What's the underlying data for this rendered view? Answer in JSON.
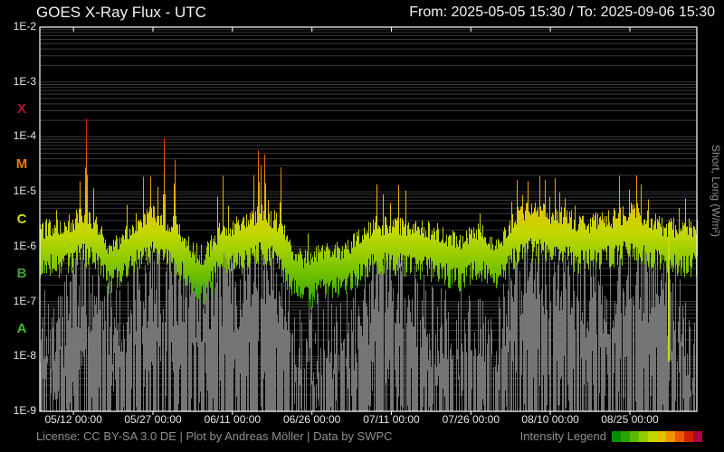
{
  "header": {
    "title": "GOES X-Ray Flux - UTC",
    "range_label": "From: 2025-05-05 15:30  /  To: 2025-09-06 15:30"
  },
  "footer": {
    "license": "License: CC BY-SA 3.0 DE | Plot by Andreas Möller | Data by SWPC",
    "legend_label": "Intensity Legend"
  },
  "chart_data": {
    "type": "line",
    "title": "GOES X-Ray Flux - UTC",
    "time_range": {
      "from": "2025-05-05 15:30",
      "to": "2025-09-06 15:30",
      "days_span": 124.0
    },
    "right_axis_label": "Short, Long (W/m²)",
    "y_axis": {
      "scale": "log",
      "log_range": [
        -2,
        -9
      ],
      "tick_labels": [
        "1E-2",
        "1E-3",
        "1E-4",
        "1E-5",
        "1E-6",
        "1E-7",
        "1E-8",
        "1E-9"
      ],
      "tick_logs": [
        -2,
        -3,
        -4,
        -5,
        -6,
        -7,
        -8,
        -9
      ],
      "unit": "W/m²"
    },
    "flare_classes": [
      {
        "label": "X",
        "log_center": -3.5,
        "color": "#b5122f"
      },
      {
        "label": "M",
        "log_center": -4.5,
        "color": "#ed7a00"
      },
      {
        "label": "C",
        "log_center": -5.5,
        "color": "#d5de12"
      },
      {
        "label": "B",
        "log_center": -6.5,
        "color": "#3fa32a"
      },
      {
        "label": "A",
        "log_center": -7.5,
        "color": "#3fbf2a"
      }
    ],
    "x_ticks": [
      {
        "day": 6.354,
        "label": "05/12 00:00"
      },
      {
        "day": 21.354,
        "label": "05/27 00:00"
      },
      {
        "day": 36.354,
        "label": "06/11 00:00"
      },
      {
        "day": 51.354,
        "label": "06/26 00:00"
      },
      {
        "day": 66.354,
        "label": "07/11 00:00"
      },
      {
        "day": 81.354,
        "label": "07/26 00:00"
      },
      {
        "day": 96.354,
        "label": "08/10 00:00"
      },
      {
        "day": 111.354,
        "label": "08/25 00:00"
      }
    ],
    "intensity_scale": {
      "log_min": -7.6,
      "log_max": -3.4,
      "colors": [
        "#009000",
        "#2aa400",
        "#5cb800",
        "#92cc00",
        "#c4d800",
        "#e4c000",
        "#f09400",
        "#ec5800",
        "#d42000",
        "#b00040"
      ]
    },
    "grid_color": "#3a3a3a",
    "frame_color": "#ffffff",
    "series": {
      "long": {
        "name": "Long",
        "baseline_log": [
          [
            0,
            -6.0
          ],
          [
            2,
            -5.95
          ],
          [
            4,
            -6.0
          ],
          [
            6,
            -5.85
          ],
          [
            8,
            -5.72
          ],
          [
            10,
            -5.85
          ],
          [
            12,
            -6.1
          ],
          [
            13,
            -6.3
          ],
          [
            15,
            -6.15
          ],
          [
            17,
            -5.95
          ],
          [
            19,
            -5.8
          ],
          [
            21,
            -5.72
          ],
          [
            23,
            -5.78
          ],
          [
            25,
            -5.9
          ],
          [
            27,
            -6.1
          ],
          [
            29,
            -6.4
          ],
          [
            31,
            -6.45
          ],
          [
            33,
            -6.15
          ],
          [
            34,
            -5.95
          ],
          [
            36,
            -5.95
          ],
          [
            38,
            -5.88
          ],
          [
            40,
            -5.78
          ],
          [
            41,
            -5.7
          ],
          [
            43,
            -5.75
          ],
          [
            45,
            -5.85
          ],
          [
            47,
            -6.25
          ],
          [
            49,
            -6.5
          ],
          [
            51,
            -6.55
          ],
          [
            53,
            -6.35
          ],
          [
            55,
            -6.3
          ],
          [
            57,
            -6.45
          ],
          [
            59,
            -6.2
          ],
          [
            61,
            -6.05
          ],
          [
            63,
            -5.9
          ],
          [
            65,
            -5.92
          ],
          [
            67,
            -5.9
          ],
          [
            69,
            -5.95
          ],
          [
            71,
            -5.95
          ],
          [
            73,
            -6.0
          ],
          [
            75,
            -6.05
          ],
          [
            77,
            -6.12
          ],
          [
            79,
            -6.2
          ],
          [
            81,
            -6.1
          ],
          [
            83,
            -6.05
          ],
          [
            85,
            -6.15
          ],
          [
            86,
            -6.25
          ],
          [
            88,
            -6.0
          ],
          [
            90,
            -5.72
          ],
          [
            92,
            -5.65
          ],
          [
            94,
            -5.68
          ],
          [
            96,
            -5.7
          ],
          [
            98,
            -5.72
          ],
          [
            100,
            -5.8
          ],
          [
            102,
            -5.88
          ],
          [
            104,
            -5.85
          ],
          [
            106,
            -5.82
          ],
          [
            108,
            -5.78
          ],
          [
            110,
            -5.72
          ],
          [
            112,
            -5.65
          ],
          [
            114,
            -5.72
          ],
          [
            116,
            -5.85
          ],
          [
            118,
            -5.95
          ],
          [
            120,
            -5.95
          ],
          [
            122,
            -5.95
          ],
          [
            124.6,
            -5.9
          ]
        ],
        "flares": [
          [
            3.1,
            -5.18
          ],
          [
            7.5,
            -4.72
          ],
          [
            8.7,
            -3.6
          ],
          [
            10.1,
            -4.8
          ],
          [
            16.4,
            -5.22
          ],
          [
            19.5,
            -4.55
          ],
          [
            20.8,
            -4.5
          ],
          [
            22.2,
            -4.89
          ],
          [
            23.4,
            -4.02
          ],
          [
            25.4,
            -4.12
          ],
          [
            33.5,
            -4.95
          ],
          [
            34.5,
            -4.7
          ],
          [
            35.5,
            -5.1
          ],
          [
            40.3,
            -4.65
          ],
          [
            41.2,
            -4.02
          ],
          [
            41.7,
            -4.36
          ],
          [
            42.4,
            -4.07
          ],
          [
            43.0,
            -4.9
          ],
          [
            45.4,
            -4.36
          ],
          [
            50.6,
            -5.5
          ],
          [
            63.5,
            -4.64
          ],
          [
            64.7,
            -4.85
          ],
          [
            66.1,
            -5.2
          ],
          [
            67.6,
            -4.66
          ],
          [
            69.0,
            -4.96
          ],
          [
            83.0,
            -5.35
          ],
          [
            89.0,
            -5.1
          ],
          [
            90.0,
            -4.72
          ],
          [
            91.0,
            -4.85
          ],
          [
            92.1,
            -4.57
          ],
          [
            93.2,
            -4.95
          ],
          [
            94.3,
            -4.6
          ],
          [
            95.3,
            -4.75
          ],
          [
            96.2,
            -4.85
          ],
          [
            97.2,
            -4.66
          ],
          [
            98.0,
            -4.78
          ],
          [
            99.1,
            -4.9
          ],
          [
            100.9,
            -5.0
          ],
          [
            102.6,
            -5.3
          ],
          [
            104.4,
            -5.15
          ],
          [
            105.7,
            -5.3
          ],
          [
            109.3,
            -4.64
          ],
          [
            111.2,
            -4.9
          ],
          [
            112.6,
            -4.44
          ],
          [
            113.4,
            -4.8
          ],
          [
            114.8,
            -5.0
          ],
          [
            116.8,
            -5.3
          ],
          [
            120.6,
            -5.2
          ],
          [
            121.8,
            -5.0
          ]
        ]
      },
      "short": {
        "name": "Short",
        "color": "#757575",
        "activity_top_log": [
          [
            0,
            -7.3
          ],
          [
            2,
            -7.1
          ],
          [
            4,
            -7.2
          ],
          [
            6,
            -6.6
          ],
          [
            8,
            -6.3
          ],
          [
            10,
            -6.5
          ],
          [
            12,
            -7.0
          ],
          [
            14,
            -7.2
          ],
          [
            16,
            -6.9
          ],
          [
            18,
            -6.5
          ],
          [
            20,
            -6.35
          ],
          [
            22,
            -6.35
          ],
          [
            24,
            -6.25
          ],
          [
            26,
            -6.45
          ],
          [
            28,
            -6.5
          ],
          [
            30,
            -6.6
          ],
          [
            32,
            -6.5
          ],
          [
            34,
            -6.35
          ],
          [
            36,
            -6.45
          ],
          [
            38,
            -6.35
          ],
          [
            40,
            -6.2
          ],
          [
            42,
            -6.1
          ],
          [
            44,
            -6.35
          ],
          [
            46,
            -6.6
          ],
          [
            48,
            -7.2
          ],
          [
            50,
            -7.5
          ],
          [
            52,
            -7.4
          ],
          [
            54,
            -7.35
          ],
          [
            56,
            -7.5
          ],
          [
            58,
            -7.35
          ],
          [
            60,
            -7.1
          ],
          [
            62,
            -6.7
          ],
          [
            64,
            -6.35
          ],
          [
            66,
            -6.45
          ],
          [
            68,
            -6.35
          ],
          [
            70,
            -6.7
          ],
          [
            72,
            -6.95
          ],
          [
            74,
            -7.15
          ],
          [
            76,
            -7.05
          ],
          [
            78,
            -7.25
          ],
          [
            80,
            -7.15
          ],
          [
            82,
            -6.95
          ],
          [
            84,
            -7.05
          ],
          [
            86,
            -7.25
          ],
          [
            88,
            -6.8
          ],
          [
            90,
            -6.3
          ],
          [
            92,
            -6.2
          ],
          [
            94,
            -6.2
          ],
          [
            96,
            -6.3
          ],
          [
            98,
            -6.3
          ],
          [
            100,
            -6.45
          ],
          [
            102,
            -6.55
          ],
          [
            104,
            -6.45
          ],
          [
            106,
            -6.55
          ],
          [
            108,
            -6.45
          ],
          [
            110,
            -6.3
          ],
          [
            112,
            -6.1
          ],
          [
            114,
            -6.3
          ],
          [
            116,
            -6.5
          ],
          [
            118,
            -6.55
          ],
          [
            120,
            -6.9
          ],
          [
            122,
            -7.4
          ],
          [
            124.6,
            -7.7
          ]
        ]
      }
    },
    "data_gap": {
      "day": 118.5,
      "from_log": -5.9,
      "to_log": -8.1,
      "color": "#c8dc00"
    }
  }
}
